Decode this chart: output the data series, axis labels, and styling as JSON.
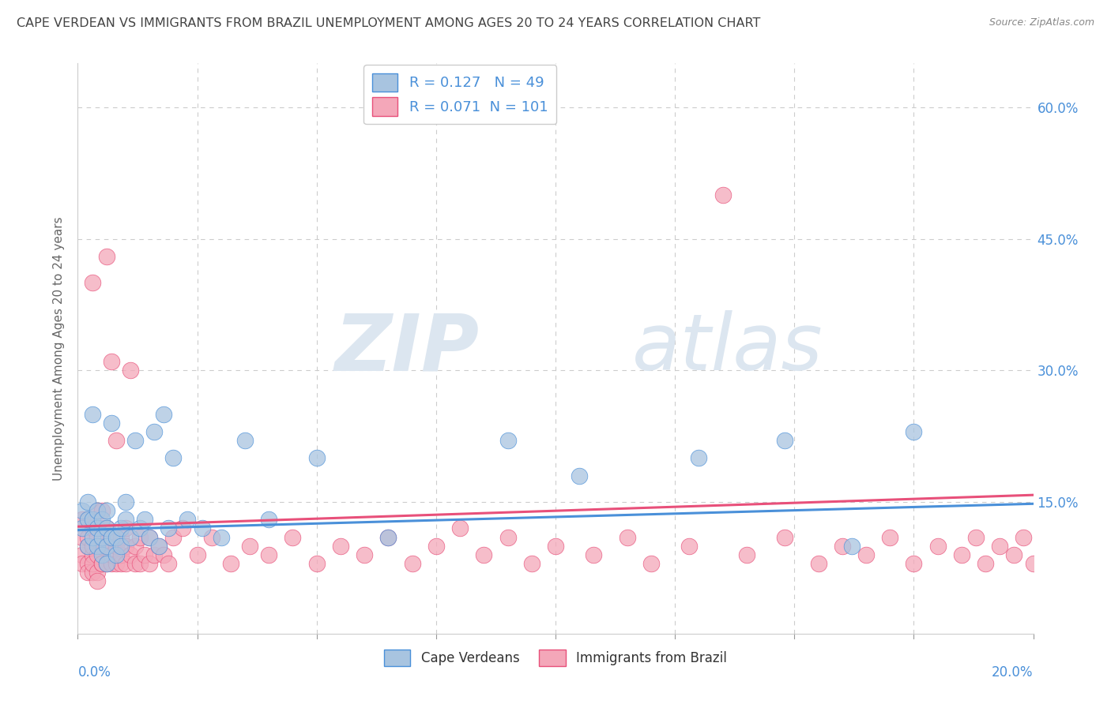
{
  "title": "CAPE VERDEAN VS IMMIGRANTS FROM BRAZIL UNEMPLOYMENT AMONG AGES 20 TO 24 YEARS CORRELATION CHART",
  "source": "Source: ZipAtlas.com",
  "ylabel": "Unemployment Among Ages 20 to 24 years",
  "xlim": [
    0.0,
    0.2
  ],
  "ylim": [
    0.0,
    0.65
  ],
  "ytick_vals": [
    0.0,
    0.15,
    0.3,
    0.45,
    0.6
  ],
  "ytick_labels": [
    "",
    "15.0%",
    "30.0%",
    "45.0%",
    "60.0%"
  ],
  "xtick_vals": [
    0.0,
    0.025,
    0.05,
    0.075,
    0.1,
    0.125,
    0.15,
    0.175,
    0.2
  ],
  "blue_R": 0.127,
  "blue_N": 49,
  "pink_R": 0.071,
  "pink_N": 101,
  "blue_color": "#a8c4e0",
  "pink_color": "#f4a7b9",
  "blue_line_color": "#4a90d9",
  "pink_line_color": "#e8507a",
  "legend_label_blue": "Cape Verdeans",
  "legend_label_pink": "Immigrants from Brazil",
  "watermark_zip": "ZIP",
  "watermark_atlas": "atlas",
  "background_color": "#ffffff",
  "title_color": "#444444",
  "title_fontsize": 11.5,
  "source_fontsize": 9,
  "tick_label_color": "#4a90d9",
  "ylabel_color": "#666666",
  "blue_x": [
    0.001,
    0.001,
    0.002,
    0.002,
    0.002,
    0.003,
    0.003,
    0.003,
    0.004,
    0.004,
    0.004,
    0.005,
    0.005,
    0.005,
    0.006,
    0.006,
    0.006,
    0.006,
    0.007,
    0.007,
    0.008,
    0.008,
    0.009,
    0.009,
    0.01,
    0.01,
    0.011,
    0.012,
    0.013,
    0.014,
    0.015,
    0.016,
    0.017,
    0.018,
    0.019,
    0.02,
    0.023,
    0.026,
    0.03,
    0.035,
    0.04,
    0.05,
    0.065,
    0.09,
    0.105,
    0.13,
    0.148,
    0.162,
    0.175
  ],
  "blue_y": [
    0.12,
    0.14,
    0.1,
    0.13,
    0.15,
    0.11,
    0.13,
    0.25,
    0.1,
    0.12,
    0.14,
    0.09,
    0.11,
    0.13,
    0.08,
    0.1,
    0.12,
    0.14,
    0.11,
    0.24,
    0.09,
    0.11,
    0.1,
    0.12,
    0.13,
    0.15,
    0.11,
    0.22,
    0.12,
    0.13,
    0.11,
    0.23,
    0.1,
    0.25,
    0.12,
    0.2,
    0.13,
    0.12,
    0.11,
    0.22,
    0.13,
    0.2,
    0.11,
    0.22,
    0.18,
    0.2,
    0.22,
    0.1,
    0.23
  ],
  "pink_x": [
    0.001,
    0.001,
    0.001,
    0.001,
    0.002,
    0.002,
    0.002,
    0.002,
    0.002,
    0.003,
    0.003,
    0.003,
    0.003,
    0.003,
    0.003,
    0.004,
    0.004,
    0.004,
    0.004,
    0.004,
    0.005,
    0.005,
    0.005,
    0.005,
    0.005,
    0.006,
    0.006,
    0.006,
    0.006,
    0.007,
    0.007,
    0.007,
    0.007,
    0.008,
    0.008,
    0.008,
    0.009,
    0.009,
    0.009,
    0.01,
    0.01,
    0.01,
    0.011,
    0.011,
    0.012,
    0.012,
    0.013,
    0.013,
    0.014,
    0.015,
    0.015,
    0.016,
    0.017,
    0.018,
    0.019,
    0.02,
    0.022,
    0.025,
    0.028,
    0.032,
    0.036,
    0.04,
    0.045,
    0.05,
    0.055,
    0.06,
    0.065,
    0.07,
    0.075,
    0.08,
    0.085,
    0.09,
    0.095,
    0.1,
    0.108,
    0.115,
    0.12,
    0.128,
    0.135,
    0.14,
    0.148,
    0.155,
    0.16,
    0.165,
    0.17,
    0.175,
    0.18,
    0.185,
    0.188,
    0.19,
    0.193,
    0.196,
    0.198,
    0.2,
    0.202,
    0.203,
    0.204,
    0.205,
    0.206,
    0.207,
    0.208
  ],
  "pink_y": [
    0.09,
    0.11,
    0.13,
    0.08,
    0.08,
    0.1,
    0.11,
    0.13,
    0.07,
    0.07,
    0.09,
    0.1,
    0.12,
    0.4,
    0.08,
    0.07,
    0.09,
    0.11,
    0.14,
    0.06,
    0.08,
    0.1,
    0.12,
    0.14,
    0.08,
    0.08,
    0.1,
    0.12,
    0.43,
    0.08,
    0.09,
    0.11,
    0.31,
    0.08,
    0.1,
    0.22,
    0.08,
    0.09,
    0.11,
    0.08,
    0.1,
    0.12,
    0.09,
    0.3,
    0.08,
    0.1,
    0.08,
    0.11,
    0.09,
    0.08,
    0.11,
    0.09,
    0.1,
    0.09,
    0.08,
    0.11,
    0.12,
    0.09,
    0.11,
    0.08,
    0.1,
    0.09,
    0.11,
    0.08,
    0.1,
    0.09,
    0.11,
    0.08,
    0.1,
    0.12,
    0.09,
    0.11,
    0.08,
    0.1,
    0.09,
    0.11,
    0.08,
    0.1,
    0.5,
    0.09,
    0.11,
    0.08,
    0.1,
    0.09,
    0.11,
    0.08,
    0.1,
    0.09,
    0.11,
    0.08,
    0.1,
    0.09,
    0.11,
    0.08,
    0.1,
    0.09,
    0.11,
    0.08,
    0.1,
    0.12,
    0.09
  ],
  "blue_trend_x": [
    0.0,
    0.2
  ],
  "blue_trend_y": [
    0.118,
    0.148
  ],
  "pink_trend_x": [
    0.0,
    0.2
  ],
  "pink_trend_y": [
    0.122,
    0.158
  ]
}
